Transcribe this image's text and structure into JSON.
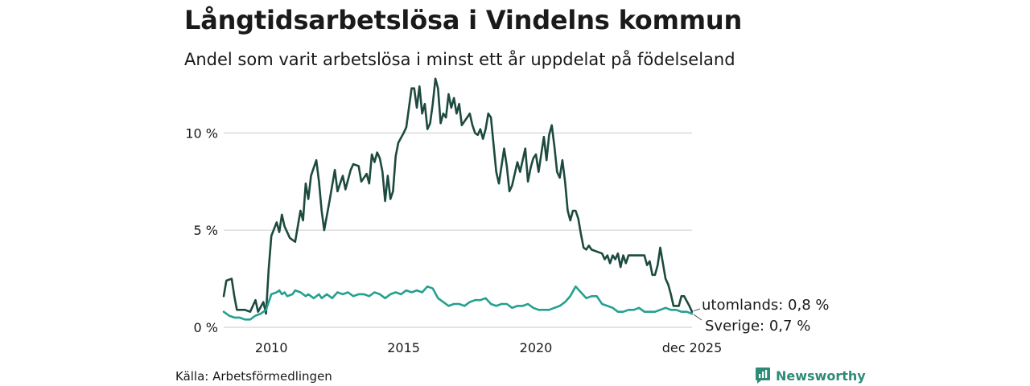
{
  "title": "Långtidsarbetslösa i Vindelns kommun",
  "subtitle": "Andel som varit arbetslösa i minst ett år uppdelat på födelseland",
  "source": "Källa: Arbetsförmedlingen",
  "brand": "Newsworthy",
  "colors": {
    "utomlands": "#1d4a3f",
    "sverige": "#25a090",
    "grid": "#dcdcdc",
    "brand": "#2e8b78"
  },
  "chart_data": {
    "type": "line",
    "title": "Långtidsarbetslösa i Vindelns kommun",
    "subtitle": "Andel som varit arbetslösa i minst ett år uppdelat på födelseland",
    "xlim": [
      2008.2,
      2025.9
    ],
    "ylim": [
      0,
      12.5
    ],
    "yticks": [
      0,
      5,
      10
    ],
    "ytick_labels": [
      "0 %",
      "5 %",
      "10 %"
    ],
    "xticks": [
      2010,
      2015,
      2020,
      2025.9
    ],
    "xtick_labels": [
      "2010",
      "2015",
      "2020",
      "dec 2025"
    ],
    "grid": true,
    "series": [
      {
        "name": "utomlands",
        "end_label": "utomlands: 0,8 %",
        "points": [
          [
            2008.2,
            1.6
          ],
          [
            2008.3,
            2.4
          ],
          [
            2008.5,
            2.5
          ],
          [
            2008.6,
            1.6
          ],
          [
            2008.7,
            0.9
          ],
          [
            2009.0,
            0.9
          ],
          [
            2009.2,
            0.8
          ],
          [
            2009.4,
            1.4
          ],
          [
            2009.5,
            0.8
          ],
          [
            2009.7,
            1.3
          ],
          [
            2009.8,
            0.7
          ],
          [
            2009.9,
            3.0
          ],
          [
            2010.0,
            4.7
          ],
          [
            2010.2,
            5.4
          ],
          [
            2010.3,
            4.9
          ],
          [
            2010.4,
            5.8
          ],
          [
            2010.5,
            5.2
          ],
          [
            2010.7,
            4.6
          ],
          [
            2010.9,
            4.4
          ],
          [
            2011.0,
            5.2
          ],
          [
            2011.1,
            6.0
          ],
          [
            2011.2,
            5.5
          ],
          [
            2011.3,
            7.4
          ],
          [
            2011.4,
            6.6
          ],
          [
            2011.5,
            7.8
          ],
          [
            2011.7,
            8.6
          ],
          [
            2011.8,
            7.5
          ],
          [
            2011.9,
            6.0
          ],
          [
            2012.0,
            5.0
          ],
          [
            2012.2,
            6.5
          ],
          [
            2012.4,
            8.1
          ],
          [
            2012.5,
            7.0
          ],
          [
            2012.6,
            7.4
          ],
          [
            2012.7,
            7.8
          ],
          [
            2012.8,
            7.1
          ],
          [
            2013.0,
            8.1
          ],
          [
            2013.1,
            8.4
          ],
          [
            2013.3,
            8.3
          ],
          [
            2013.4,
            7.5
          ],
          [
            2013.6,
            7.9
          ],
          [
            2013.7,
            7.4
          ],
          [
            2013.8,
            8.9
          ],
          [
            2013.9,
            8.5
          ],
          [
            2014.0,
            9.0
          ],
          [
            2014.1,
            8.7
          ],
          [
            2014.2,
            8.0
          ],
          [
            2014.3,
            6.5
          ],
          [
            2014.4,
            7.8
          ],
          [
            2014.5,
            6.6
          ],
          [
            2014.6,
            7.0
          ],
          [
            2014.7,
            8.8
          ],
          [
            2014.8,
            9.5
          ],
          [
            2015.0,
            10.0
          ],
          [
            2015.1,
            10.3
          ],
          [
            2015.2,
            11.3
          ],
          [
            2015.3,
            12.3
          ],
          [
            2015.4,
            12.3
          ],
          [
            2015.5,
            11.3
          ],
          [
            2015.6,
            12.4
          ],
          [
            2015.7,
            11.0
          ],
          [
            2015.8,
            11.5
          ],
          [
            2015.9,
            10.2
          ],
          [
            2016.0,
            10.5
          ],
          [
            2016.1,
            11.5
          ],
          [
            2016.2,
            12.8
          ],
          [
            2016.3,
            12.3
          ],
          [
            2016.4,
            10.5
          ],
          [
            2016.5,
            11.0
          ],
          [
            2016.6,
            10.8
          ],
          [
            2016.7,
            12.0
          ],
          [
            2016.8,
            11.3
          ],
          [
            2016.9,
            11.8
          ],
          [
            2017.0,
            11.0
          ],
          [
            2017.1,
            11.5
          ],
          [
            2017.2,
            10.4
          ],
          [
            2017.4,
            10.8
          ],
          [
            2017.5,
            11.0
          ],
          [
            2017.6,
            10.4
          ],
          [
            2017.7,
            10.0
          ],
          [
            2017.8,
            9.9
          ],
          [
            2017.9,
            10.2
          ],
          [
            2018.0,
            9.7
          ],
          [
            2018.1,
            10.2
          ],
          [
            2018.2,
            11.0
          ],
          [
            2018.3,
            10.8
          ],
          [
            2018.5,
            8.0
          ],
          [
            2018.6,
            7.4
          ],
          [
            2018.8,
            9.2
          ],
          [
            2018.9,
            8.3
          ],
          [
            2019.0,
            7.0
          ],
          [
            2019.1,
            7.3
          ],
          [
            2019.3,
            8.5
          ],
          [
            2019.4,
            8.0
          ],
          [
            2019.6,
            9.2
          ],
          [
            2019.7,
            7.5
          ],
          [
            2019.8,
            8.2
          ],
          [
            2019.9,
            8.7
          ],
          [
            2020.0,
            8.9
          ],
          [
            2020.1,
            8.0
          ],
          [
            2020.3,
            9.8
          ],
          [
            2020.4,
            8.6
          ],
          [
            2020.5,
            9.9
          ],
          [
            2020.6,
            10.4
          ],
          [
            2020.7,
            9.3
          ],
          [
            2020.8,
            8.0
          ],
          [
            2020.9,
            7.7
          ],
          [
            2021.0,
            8.6
          ],
          [
            2021.1,
            7.5
          ],
          [
            2021.2,
            6.0
          ],
          [
            2021.3,
            5.5
          ],
          [
            2021.4,
            6.0
          ],
          [
            2021.5,
            6.0
          ],
          [
            2021.6,
            5.6
          ],
          [
            2021.7,
            4.8
          ],
          [
            2021.8,
            4.1
          ],
          [
            2021.9,
            4.0
          ],
          [
            2022.0,
            4.2
          ],
          [
            2022.1,
            4.0
          ],
          [
            2022.3,
            3.9
          ],
          [
            2022.5,
            3.8
          ],
          [
            2022.6,
            3.5
          ],
          [
            2022.7,
            3.7
          ],
          [
            2022.8,
            3.3
          ],
          [
            2022.9,
            3.7
          ],
          [
            2023.0,
            3.5
          ],
          [
            2023.1,
            3.8
          ],
          [
            2023.2,
            3.1
          ],
          [
            2023.3,
            3.7
          ],
          [
            2023.4,
            3.3
          ],
          [
            2023.5,
            3.7
          ],
          [
            2023.7,
            3.7
          ],
          [
            2023.9,
            3.7
          ],
          [
            2024.1,
            3.7
          ],
          [
            2024.2,
            3.2
          ],
          [
            2024.3,
            3.4
          ],
          [
            2024.4,
            2.7
          ],
          [
            2024.5,
            2.7
          ],
          [
            2024.6,
            3.2
          ],
          [
            2024.7,
            4.1
          ],
          [
            2024.8,
            3.3
          ],
          [
            2024.9,
            2.5
          ],
          [
            2025.0,
            2.2
          ],
          [
            2025.1,
            1.7
          ],
          [
            2025.2,
            1.1
          ],
          [
            2025.4,
            1.1
          ],
          [
            2025.5,
            1.6
          ],
          [
            2025.6,
            1.6
          ],
          [
            2025.8,
            1.1
          ],
          [
            2025.9,
            0.8
          ]
        ]
      },
      {
        "name": "Sverige",
        "end_label": "Sverige: 0,7 %",
        "points": [
          [
            2008.2,
            0.8
          ],
          [
            2008.3,
            0.7
          ],
          [
            2008.4,
            0.6
          ],
          [
            2008.6,
            0.5
          ],
          [
            2008.8,
            0.5
          ],
          [
            2009.0,
            0.4
          ],
          [
            2009.2,
            0.4
          ],
          [
            2009.4,
            0.6
          ],
          [
            2009.6,
            0.7
          ],
          [
            2009.8,
            0.9
          ],
          [
            2010.0,
            1.7
          ],
          [
            2010.2,
            1.8
          ],
          [
            2010.3,
            1.9
          ],
          [
            2010.4,
            1.7
          ],
          [
            2010.5,
            1.8
          ],
          [
            2010.6,
            1.6
          ],
          [
            2010.8,
            1.7
          ],
          [
            2010.9,
            1.9
          ],
          [
            2011.1,
            1.8
          ],
          [
            2011.3,
            1.6
          ],
          [
            2011.4,
            1.7
          ],
          [
            2011.6,
            1.5
          ],
          [
            2011.8,
            1.7
          ],
          [
            2011.9,
            1.5
          ],
          [
            2012.1,
            1.7
          ],
          [
            2012.3,
            1.5
          ],
          [
            2012.5,
            1.8
          ],
          [
            2012.7,
            1.7
          ],
          [
            2012.9,
            1.8
          ],
          [
            2013.1,
            1.6
          ],
          [
            2013.3,
            1.7
          ],
          [
            2013.5,
            1.7
          ],
          [
            2013.7,
            1.6
          ],
          [
            2013.9,
            1.8
          ],
          [
            2014.1,
            1.7
          ],
          [
            2014.3,
            1.5
          ],
          [
            2014.5,
            1.7
          ],
          [
            2014.7,
            1.8
          ],
          [
            2014.9,
            1.7
          ],
          [
            2015.1,
            1.9
          ],
          [
            2015.3,
            1.8
          ],
          [
            2015.5,
            1.9
          ],
          [
            2015.7,
            1.8
          ],
          [
            2015.9,
            2.1
          ],
          [
            2016.1,
            2.0
          ],
          [
            2016.3,
            1.5
          ],
          [
            2016.5,
            1.3
          ],
          [
            2016.7,
            1.1
          ],
          [
            2016.9,
            1.2
          ],
          [
            2017.1,
            1.2
          ],
          [
            2017.3,
            1.1
          ],
          [
            2017.5,
            1.3
          ],
          [
            2017.7,
            1.4
          ],
          [
            2017.9,
            1.4
          ],
          [
            2018.1,
            1.5
          ],
          [
            2018.3,
            1.2
          ],
          [
            2018.5,
            1.1
          ],
          [
            2018.7,
            1.2
          ],
          [
            2018.9,
            1.2
          ],
          [
            2019.1,
            1.0
          ],
          [
            2019.3,
            1.1
          ],
          [
            2019.5,
            1.1
          ],
          [
            2019.7,
            1.2
          ],
          [
            2019.9,
            1.0
          ],
          [
            2020.1,
            0.9
          ],
          [
            2020.3,
            0.9
          ],
          [
            2020.5,
            0.9
          ],
          [
            2020.7,
            1.0
          ],
          [
            2020.9,
            1.1
          ],
          [
            2021.1,
            1.3
          ],
          [
            2021.3,
            1.6
          ],
          [
            2021.5,
            2.1
          ],
          [
            2021.7,
            1.8
          ],
          [
            2021.9,
            1.5
          ],
          [
            2022.1,
            1.6
          ],
          [
            2022.3,
            1.6
          ],
          [
            2022.5,
            1.2
          ],
          [
            2022.7,
            1.1
          ],
          [
            2022.9,
            1.0
          ],
          [
            2023.1,
            0.8
          ],
          [
            2023.3,
            0.8
          ],
          [
            2023.5,
            0.9
          ],
          [
            2023.7,
            0.9
          ],
          [
            2023.9,
            1.0
          ],
          [
            2024.1,
            0.8
          ],
          [
            2024.3,
            0.8
          ],
          [
            2024.5,
            0.8
          ],
          [
            2024.7,
            0.9
          ],
          [
            2024.9,
            1.0
          ],
          [
            2025.1,
            0.9
          ],
          [
            2025.3,
            0.9
          ],
          [
            2025.5,
            0.8
          ],
          [
            2025.7,
            0.8
          ],
          [
            2025.9,
            0.7
          ]
        ]
      }
    ]
  }
}
